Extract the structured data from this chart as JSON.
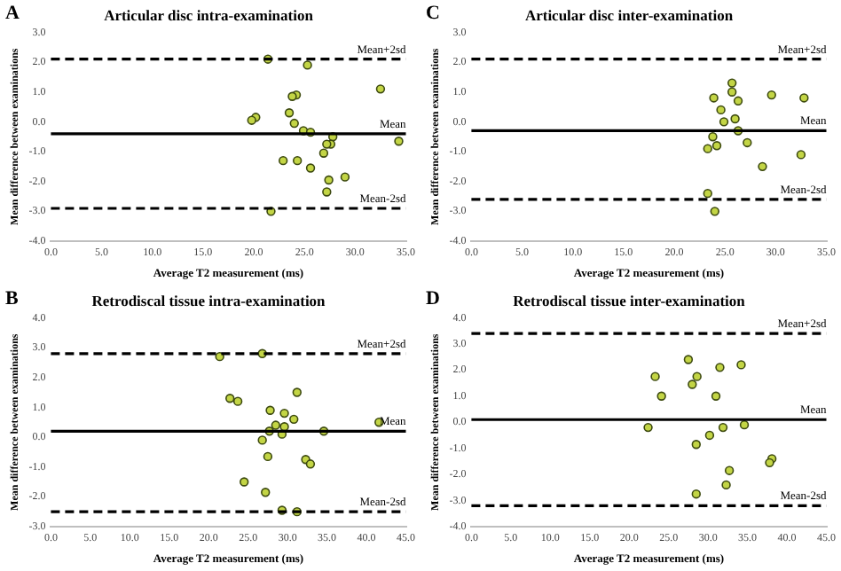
{
  "chart_data": [
    {
      "type": "scatter",
      "title": "Articular disc intra-examination",
      "xlabel": "Average T2 measurement (ms)",
      "ylabel": "Mean difference between examinations",
      "annotations": [
        "A"
      ],
      "color": "#c3d545",
      "marker": "circle",
      "legend": false,
      "grid": false,
      "x": [
        21.4,
        25.3,
        32.5,
        24.2,
        23.8,
        23.5,
        20.2,
        19.8,
        24.0,
        24.9,
        25.6,
        27.8,
        27.6,
        27.2,
        34.3,
        26.9,
        22.9,
        24.3,
        25.6,
        29.0,
        27.4,
        27.2,
        21.7
      ],
      "values": [
        2.1,
        1.9,
        1.1,
        0.9,
        0.85,
        0.3,
        0.15,
        0.05,
        -0.05,
        -0.3,
        -0.35,
        -0.5,
        -0.75,
        -0.75,
        -0.65,
        -1.05,
        -1.3,
        -1.3,
        -1.55,
        -1.85,
        -1.95,
        -2.35,
        -3.0
      ],
      "xlim": [
        0,
        35
      ],
      "xticks": [
        {
          "value": 0,
          "label": "0.0"
        },
        {
          "value": 5,
          "label": "5.0"
        },
        {
          "value": 10,
          "label": "10.0"
        },
        {
          "value": 15,
          "label": "15.0"
        },
        {
          "value": 20,
          "label": "20.0"
        },
        {
          "value": 25,
          "label": "25.0"
        },
        {
          "value": 30,
          "label": "30.0"
        },
        {
          "value": 35,
          "label": "35.0"
        }
      ],
      "ylim": [
        -4,
        3
      ],
      "yticks": [
        {
          "value": -4,
          "label": "-4.0"
        },
        {
          "value": -3,
          "label": "-3.0"
        },
        {
          "value": -2,
          "label": "-2.0"
        },
        {
          "value": -1,
          "label": "-1.0"
        },
        {
          "value": 0,
          "label": "0.0"
        },
        {
          "value": 1,
          "label": "1.0"
        },
        {
          "value": 2,
          "label": "2.0"
        },
        {
          "value": 3,
          "label": "3.0"
        }
      ],
      "ref_lines": [
        {
          "axis": "y",
          "value": 2.1,
          "label": "Mean+2sd",
          "line_style": "dashed",
          "color": "#000000"
        },
        {
          "axis": "y",
          "value": -0.4,
          "label": "Mean",
          "line_style": "solid",
          "color": "#000000"
        },
        {
          "axis": "y",
          "value": -2.9,
          "label": "Mean-2sd",
          "line_style": "dashed",
          "color": "#000000"
        }
      ]
    },
    {
      "type": "scatter",
      "title": "Articular disc inter-examination",
      "xlabel": "Average T2 measurement (ms)",
      "ylabel": "Mean difference between examinations",
      "annotations": [
        "C"
      ],
      "color": "#c3d545",
      "marker": "circle",
      "legend": false,
      "grid": false,
      "x": [
        25.7,
        25.7,
        23.9,
        26.3,
        29.6,
        32.8,
        24.6,
        26.0,
        24.9,
        26.3,
        23.8,
        27.2,
        24.2,
        23.3,
        32.5,
        28.7,
        23.3,
        24.0
      ],
      "values": [
        1.3,
        1.0,
        0.8,
        0.7,
        0.9,
        0.8,
        0.4,
        0.1,
        0.0,
        -0.3,
        -0.5,
        -0.7,
        -0.8,
        -0.9,
        -1.1,
        -1.5,
        -2.4,
        -3.0
      ],
      "xlim": [
        0,
        35
      ],
      "xticks": [
        {
          "value": 0,
          "label": "0.0"
        },
        {
          "value": 5,
          "label": "5.0"
        },
        {
          "value": 10,
          "label": "10.0"
        },
        {
          "value": 15,
          "label": "15.0"
        },
        {
          "value": 20,
          "label": "20.0"
        },
        {
          "value": 25,
          "label": "25.0"
        },
        {
          "value": 30,
          "label": "30.0"
        },
        {
          "value": 35,
          "label": "35.0"
        }
      ],
      "ylim": [
        -4,
        3
      ],
      "yticks": [
        {
          "value": -4,
          "label": "-4.0"
        },
        {
          "value": -3,
          "label": "-3.0"
        },
        {
          "value": -2,
          "label": "-2.0"
        },
        {
          "value": -1,
          "label": "-1.0"
        },
        {
          "value": 0,
          "label": "0.0"
        },
        {
          "value": 1,
          "label": "1.0"
        },
        {
          "value": 2,
          "label": "2.0"
        },
        {
          "value": 3,
          "label": "3.0"
        }
      ],
      "ref_lines": [
        {
          "axis": "y",
          "value": 2.1,
          "label": "Mean+2sd",
          "line_style": "dashed",
          "color": "#000000"
        },
        {
          "axis": "y",
          "value": -0.3,
          "label": "Mean",
          "line_style": "solid",
          "color": "#000000"
        },
        {
          "axis": "y",
          "value": -2.6,
          "label": "Mean-2sd",
          "line_style": "dashed",
          "color": "#000000"
        }
      ]
    },
    {
      "type": "scatter",
      "title": "Retrodiscal tissue intra-examination",
      "xlabel": "Average T2 measurement (ms)",
      "ylabel": "Mean difference between examinations",
      "annotations": [
        "B"
      ],
      "color": "#c3d545",
      "marker": "circle",
      "legend": false,
      "grid": false,
      "x": [
        21.4,
        26.8,
        22.7,
        23.7,
        31.2,
        27.8,
        29.6,
        30.8,
        28.5,
        29.6,
        41.6,
        27.7,
        34.6,
        29.3,
        26.8,
        27.5,
        32.3,
        32.9,
        24.5,
        27.2,
        29.3,
        31.2
      ],
      "values": [
        2.7,
        2.8,
        1.3,
        1.2,
        1.5,
        0.9,
        0.8,
        0.6,
        0.4,
        0.35,
        0.5,
        0.2,
        0.2,
        0.1,
        -0.1,
        -0.65,
        -0.75,
        -0.9,
        -1.5,
        -1.85,
        -2.45,
        -2.5
      ],
      "xlim": [
        0,
        45
      ],
      "xticks": [
        {
          "value": 0,
          "label": "0.0"
        },
        {
          "value": 5,
          "label": "5.0"
        },
        {
          "value": 10,
          "label": "10.0"
        },
        {
          "value": 15,
          "label": "15.0"
        },
        {
          "value": 20,
          "label": "20.0"
        },
        {
          "value": 25,
          "label": "25.0"
        },
        {
          "value": 30,
          "label": "30.0"
        },
        {
          "value": 35,
          "label": "35.0"
        },
        {
          "value": 40,
          "label": "40.0"
        },
        {
          "value": 45,
          "label": "45.0"
        }
      ],
      "ylim": [
        -3,
        4
      ],
      "yticks": [
        {
          "value": -3,
          "label": "-3.0"
        },
        {
          "value": -2,
          "label": "-2.0"
        },
        {
          "value": -1,
          "label": "-1.0"
        },
        {
          "value": 0,
          "label": "0.0"
        },
        {
          "value": 1,
          "label": "1.0"
        },
        {
          "value": 2,
          "label": "2.0"
        },
        {
          "value": 3,
          "label": "3.0"
        },
        {
          "value": 4,
          "label": "4.0"
        }
      ],
      "ref_lines": [
        {
          "axis": "y",
          "value": 2.8,
          "label": "Mean+2sd",
          "line_style": "dashed",
          "color": "#000000"
        },
        {
          "axis": "y",
          "value": 0.2,
          "label": "Mean",
          "line_style": "solid",
          "color": "#000000"
        },
        {
          "axis": "y",
          "value": -2.5,
          "label": "Mean-2sd",
          "line_style": "dashed",
          "color": "#000000"
        }
      ]
    },
    {
      "type": "scatter",
      "title": "Retrodiscal tissue inter-examination",
      "xlabel": "Average T2 measurement (ms)",
      "ylabel": "Mean difference between examinations",
      "annotations": [
        "D"
      ],
      "color": "#c3d545",
      "marker": "circle",
      "legend": false,
      "grid": false,
      "x": [
        27.5,
        34.2,
        31.5,
        23.3,
        28.6,
        28.0,
        24.1,
        31.0,
        22.4,
        31.9,
        34.6,
        30.2,
        28.5,
        38.1,
        37.8,
        32.7,
        32.3,
        28.5
      ],
      "values": [
        2.4,
        2.2,
        2.1,
        1.75,
        1.75,
        1.45,
        1.0,
        1.0,
        -0.2,
        -0.2,
        -0.1,
        -0.5,
        -0.85,
        -1.4,
        -1.55,
        -1.85,
        -2.4,
        -2.75
      ],
      "xlim": [
        0,
        45
      ],
      "xticks": [
        {
          "value": 0,
          "label": "0.0"
        },
        {
          "value": 5,
          "label": "5.0"
        },
        {
          "value": 10,
          "label": "10.0"
        },
        {
          "value": 15,
          "label": "15.0"
        },
        {
          "value": 20,
          "label": "20.0"
        },
        {
          "value": 25,
          "label": "25.0"
        },
        {
          "value": 30,
          "label": "30.0"
        },
        {
          "value": 35,
          "label": "35.0"
        },
        {
          "value": 40,
          "label": "40.0"
        },
        {
          "value": 45,
          "label": "45.0"
        }
      ],
      "ylim": [
        -4,
        4
      ],
      "yticks": [
        {
          "value": -4,
          "label": "-4.0"
        },
        {
          "value": -3,
          "label": "-3.0"
        },
        {
          "value": -2,
          "label": "-2.0"
        },
        {
          "value": -1,
          "label": "-1.0"
        },
        {
          "value": 0,
          "label": "0.0"
        },
        {
          "value": 1,
          "label": "1.0"
        },
        {
          "value": 2,
          "label": "2.0"
        },
        {
          "value": 3,
          "label": "3.0"
        },
        {
          "value": 4,
          "label": "4.0"
        }
      ],
      "ref_lines": [
        {
          "axis": "y",
          "value": 3.4,
          "label": "Mean+2sd",
          "line_style": "dashed",
          "color": "#000000"
        },
        {
          "axis": "y",
          "value": 0.1,
          "label": "Mean",
          "line_style": "solid",
          "color": "#000000"
        },
        {
          "axis": "y",
          "value": -3.2,
          "label": "Mean-2sd",
          "line_style": "dashed",
          "color": "#000000"
        }
      ]
    }
  ]
}
